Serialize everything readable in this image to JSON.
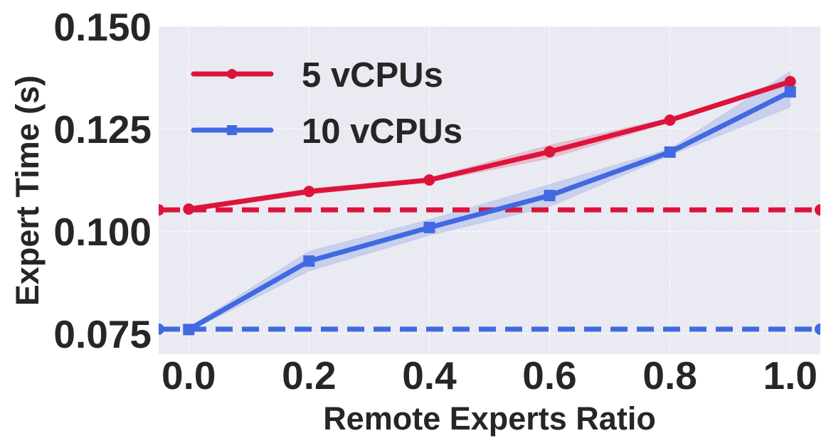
{
  "chart_data": {
    "type": "line",
    "title": "",
    "xlabel": "Remote Experts Ratio",
    "ylabel": "Expert Time (s)",
    "x": [
      0.0,
      0.2,
      0.4,
      0.6,
      0.8,
      1.0
    ],
    "xticks": [
      "0.0",
      "0.2",
      "0.4",
      "0.6",
      "0.8",
      "1.0"
    ],
    "yticks": [
      "0.075",
      "0.100",
      "0.125",
      "0.150"
    ],
    "ytick_values": [
      0.075,
      0.1,
      0.125,
      0.15
    ],
    "xlim": [
      -0.05,
      1.05
    ],
    "ylim": [
      0.07,
      0.15
    ],
    "grid": true,
    "legend_position": "upper left",
    "series": [
      {
        "name": "5 vCPUs",
        "color": "#DC143C",
        "marker": "circle",
        "values": [
          0.1054,
          0.1097,
          0.1125,
          0.1194,
          0.1271,
          0.1365
        ],
        "band_lower": [
          0.105,
          0.109,
          0.112,
          0.1178,
          0.1266,
          0.1358
        ],
        "band_upper": [
          0.1058,
          0.1104,
          0.113,
          0.121,
          0.1276,
          0.1372
        ]
      },
      {
        "name": "10 vCPUs",
        "color": "#4169E1",
        "marker": "square",
        "values": [
          0.076,
          0.0927,
          0.1009,
          0.1087,
          0.1193,
          0.134
        ],
        "band_lower": [
          0.0755,
          0.0903,
          0.099,
          0.106,
          0.1185,
          0.1303
        ],
        "band_upper": [
          0.0765,
          0.0951,
          0.1028,
          0.1114,
          0.1201,
          0.139
        ]
      }
    ],
    "reference_lines": [
      {
        "name": "5 vCPUs baseline",
        "color": "#DC143C",
        "style": "dashed",
        "y": 0.1052
      },
      {
        "name": "10 vCPUs baseline",
        "color": "#4169E1",
        "style": "dashed",
        "y": 0.0761
      }
    ]
  },
  "legend": {
    "items": [
      {
        "label": "5 vCPUs"
      },
      {
        "label": "10 vCPUs"
      }
    ]
  },
  "style": {
    "plot_background": "#EAEAF2",
    "grid_color": "#FFFFFF",
    "text_color": "#262626"
  }
}
